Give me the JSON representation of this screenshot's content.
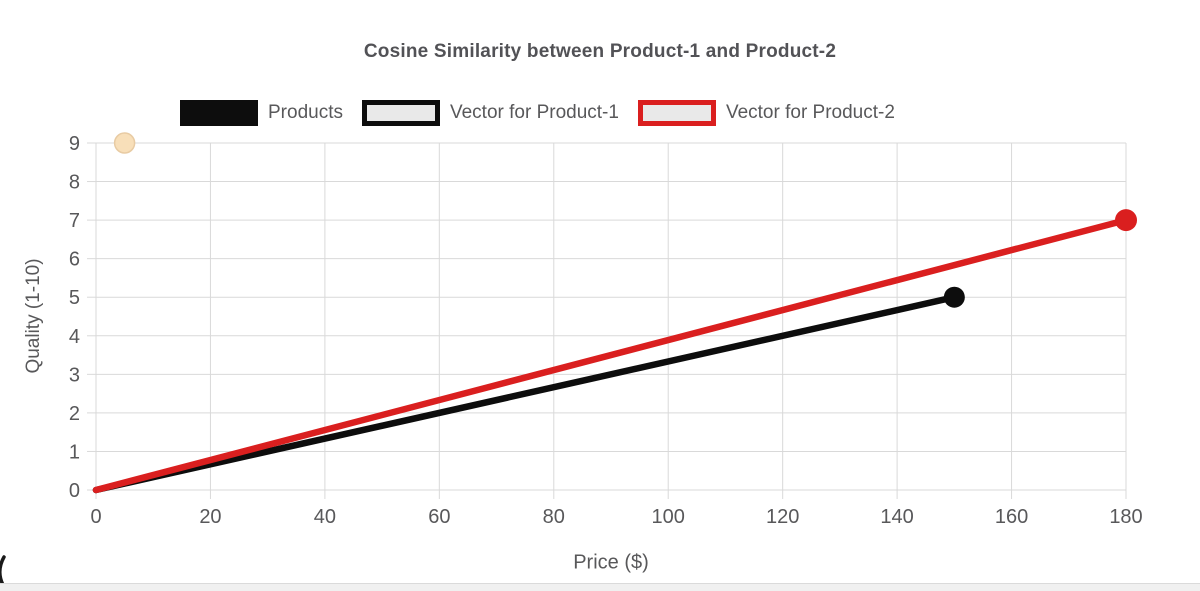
{
  "title": "Cosine Similarity between Product-1 and Product-2",
  "legend": {
    "items": [
      {
        "label": "Products",
        "swatch_fill": "#0d0d0d",
        "swatch_border": "#0d0d0d"
      },
      {
        "label": "Vector for Product-1",
        "swatch_fill": "#e9e9e9",
        "swatch_border": "#0d0d0d"
      },
      {
        "label": "Vector for Product-2",
        "swatch_fill": "#e9e9e9",
        "swatch_border": "#da1f1f"
      }
    ]
  },
  "chart_data": {
    "type": "line",
    "title": "Cosine Similarity between Product-1 and Product-2",
    "xlabel": "Price ($)",
    "ylabel": "Quality (1-10)",
    "xlim": [
      0,
      180
    ],
    "ylim": [
      0,
      9
    ],
    "xticks": [
      0,
      20,
      40,
      60,
      80,
      100,
      120,
      140,
      160,
      180
    ],
    "yticks": [
      0,
      1,
      2,
      3,
      4,
      5,
      6,
      7,
      8,
      9
    ],
    "grid": true,
    "legend_position": "top",
    "series": [
      {
        "name": "Vector for Product-1",
        "color": "#0d0d0d",
        "line_width": 6.5,
        "points": [
          [
            0,
            0
          ],
          [
            150,
            5
          ]
        ],
        "endpoint_marker": true,
        "marker_radius": 10.5
      },
      {
        "name": "Vector for Product-2",
        "color": "#da1f1f",
        "line_width": 6.5,
        "points": [
          [
            0,
            0
          ],
          [
            180,
            7
          ]
        ],
        "endpoint_marker": true,
        "marker_radius": 11
      }
    ],
    "extra_points": [
      {
        "x": 5,
        "y": 9,
        "radius": 10,
        "fill": "#f8dfb9",
        "stroke": "#e8cba3"
      }
    ],
    "grid_color": "#d9d9d9",
    "text_color": "#58585a"
  }
}
